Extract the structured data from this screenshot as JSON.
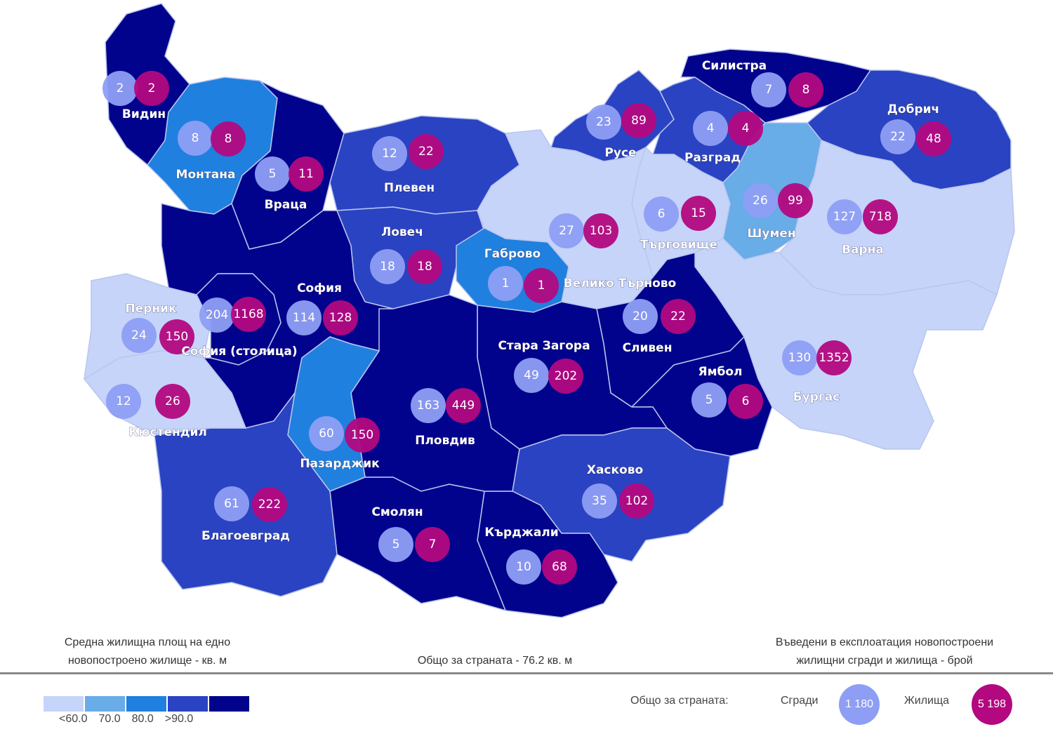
{
  "colors": {
    "classes": [
      "#c6d4fa",
      "#68ace8",
      "#1f80df",
      "#2a43c2",
      "#02038c"
    ],
    "buildings": "#8e9ef4",
    "dwellings": "#b3087f",
    "border": "#b9c6ee"
  },
  "regions": [
    {
      "name": "София",
      "buildings": "114",
      "dwellings": "128",
      "class": 4
    },
    {
      "name": "Видин",
      "buildings": "2",
      "dwellings": "2",
      "class": 4
    },
    {
      "name": "Монтана",
      "buildings": "8",
      "dwellings": "8",
      "class": 2
    },
    {
      "name": "Враца",
      "buildings": "5",
      "dwellings": "11",
      "class": 4
    },
    {
      "name": "Плевен",
      "buildings": "12",
      "dwellings": "22",
      "class": 3
    },
    {
      "name": "Ловеч",
      "buildings": "18",
      "dwellings": "18",
      "class": 3
    },
    {
      "name": "Велико Търново",
      "buildings": "27",
      "dwellings": "103",
      "class": 0
    },
    {
      "name": "Габрово",
      "buildings": "1",
      "dwellings": "1",
      "class": 2
    },
    {
      "name": "Русе",
      "buildings": "23",
      "dwellings": "89",
      "class": 3
    },
    {
      "name": "Разград",
      "buildings": "4",
      "dwellings": "4",
      "class": 3
    },
    {
      "name": "Силистра",
      "buildings": "7",
      "dwellings": "8",
      "class": 4
    },
    {
      "name": "Добрич",
      "buildings": "22",
      "dwellings": "48",
      "class": 3
    },
    {
      "name": "Търговище",
      "buildings": "6",
      "dwellings": "15",
      "class": 0
    },
    {
      "name": "Шумен",
      "buildings": "26",
      "dwellings": "99",
      "class": 1
    },
    {
      "name": "Варна",
      "buildings": "127",
      "dwellings": "718",
      "class": 0
    },
    {
      "name": "Бургас",
      "buildings": "130",
      "dwellings": "1352",
      "class": 0
    },
    {
      "name": "Сливен",
      "buildings": "20",
      "dwellings": "22",
      "class": 4
    },
    {
      "name": "Ямбол",
      "buildings": "5",
      "dwellings": "6",
      "class": 4
    },
    {
      "name": "Стара Загора",
      "buildings": "49",
      "dwellings": "202",
      "class": 4
    },
    {
      "name": "Хасково",
      "buildings": "35",
      "dwellings": "102",
      "class": 3
    },
    {
      "name": "Кърджали",
      "buildings": "10",
      "dwellings": "68",
      "class": 4
    },
    {
      "name": "Смолян",
      "buildings": "5",
      "dwellings": "7",
      "class": 4
    },
    {
      "name": "Пловдив",
      "buildings": "163",
      "dwellings": "449",
      "class": 4
    },
    {
      "name": "Пазарджик",
      "buildings": "60",
      "dwellings": "150",
      "class": 2
    },
    {
      "name": "Благоевград",
      "buildings": "61",
      "dwellings": "222",
      "class": 3
    },
    {
      "name": "Кюстендил",
      "buildings": "12",
      "dwellings": "26",
      "class": 0
    },
    {
      "name": "Перник",
      "buildings": "24",
      "dwellings": "150",
      "class": 0
    },
    {
      "name": "София (столица)",
      "buildings": "204",
      "dwellings": "1168",
      "class": 4
    }
  ],
  "legend": {
    "area_title_1": "Средна жилищна площ на едно",
    "area_title_2": "новопостроено жилище - кв. м",
    "national_area": "Общо за страната - 76.2 кв. м",
    "count_title_1": "Въведени в експлоатация новопостроени",
    "count_title_2": "жилищни сгради и жилища - брой",
    "ticks": [
      "<60.0",
      "70.0",
      "80.0",
      ">90.0"
    ],
    "national_label": "Общо за страната:",
    "buildings_label": "Сгради",
    "buildings_total": "1 180",
    "dwellings_label": "Жилища",
    "dwellings_total": "5 198"
  }
}
